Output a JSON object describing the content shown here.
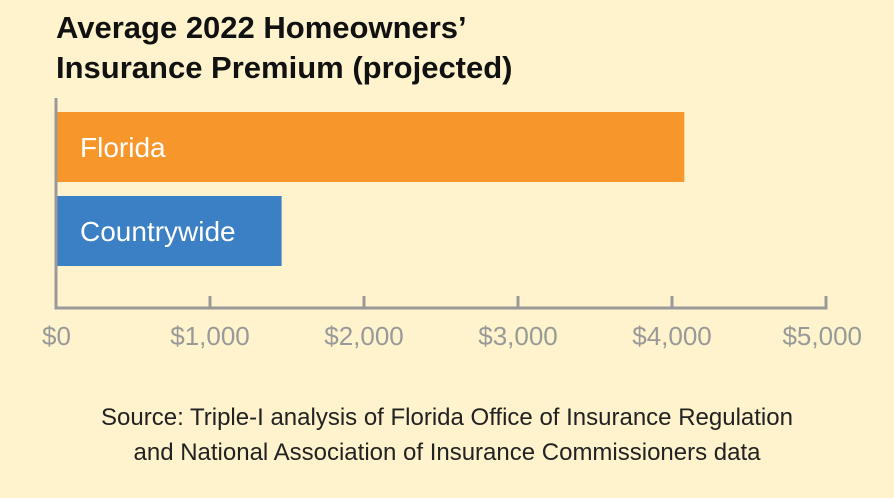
{
  "chart_data": {
    "type": "bar",
    "orientation": "horizontal",
    "title": "Average 2022 Homeowners’\nInsurance Premium (projected)",
    "categories": [
      "Florida",
      "Countrywide"
    ],
    "values": [
      4080,
      1465
    ],
    "bar_colors": [
      "#f7962a",
      "#3b7fc4"
    ],
    "xlim": [
      0,
      5000
    ],
    "x_ticks": [
      "$0",
      "$1,000",
      "$2,000",
      "$3,000",
      "$4,000",
      "$5,000"
    ],
    "x_tick_values": [
      0,
      1000,
      2000,
      3000,
      4000,
      5000
    ],
    "xlabel": "",
    "ylabel": "",
    "grid": false,
    "axis_color": "#999999",
    "tick_label_color": "#999999",
    "bar_label_color": "#ffffff"
  },
  "source": "Source: Triple-I analysis of Florida Office of Insurance Regulation\nand National Association of Insurance Commissioners data"
}
